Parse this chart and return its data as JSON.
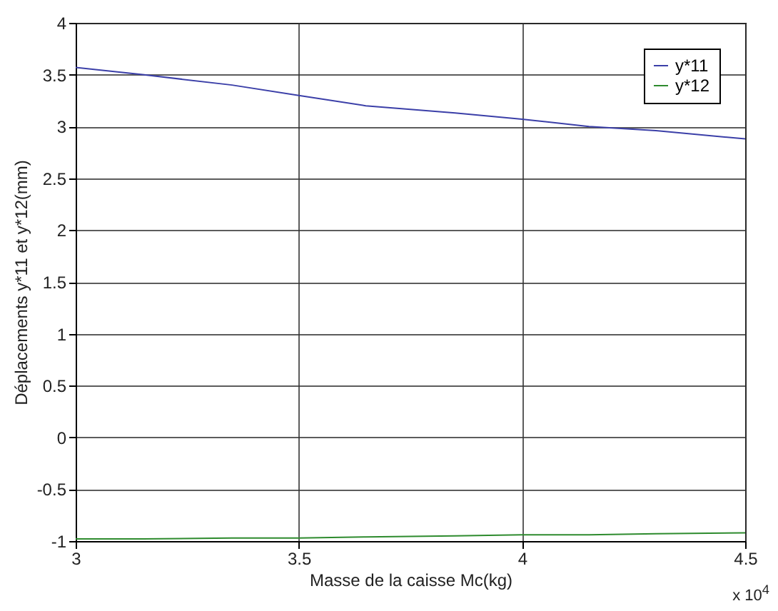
{
  "chart_data": {
    "type": "line",
    "xlabel": "Masse de la caisse Mc(kg)",
    "ylabel": "Déplacements y*11 et y*12(mm)",
    "x": [
      3,
      3.15,
      3.35,
      3.5,
      3.65,
      3.85,
      4,
      4.15,
      4.3,
      4.5
    ],
    "series": [
      {
        "name": "y*11",
        "color": "#3b3fa8",
        "values": [
          3.57,
          3.5,
          3.4,
          3.3,
          3.2,
          3.13,
          3.07,
          3.0,
          2.96,
          2.88
        ]
      },
      {
        "name": "y*12",
        "color": "#2e8b2e",
        "values": [
          -0.98,
          -0.98,
          -0.97,
          -0.97,
          -0.96,
          -0.95,
          -0.94,
          -0.94,
          -0.93,
          -0.92
        ]
      }
    ],
    "xlim": [
      3,
      4.5
    ],
    "xticks": [
      3,
      3.5,
      4,
      4.5
    ],
    "ylim": [
      -1,
      4
    ],
    "yticks": [
      -1,
      -0.5,
      0,
      0.5,
      1,
      1.5,
      2,
      2.5,
      3,
      3.5,
      4
    ],
    "grid": true,
    "legend": "top right",
    "annotations": [
      "x 10$^{4}$"
    ]
  }
}
